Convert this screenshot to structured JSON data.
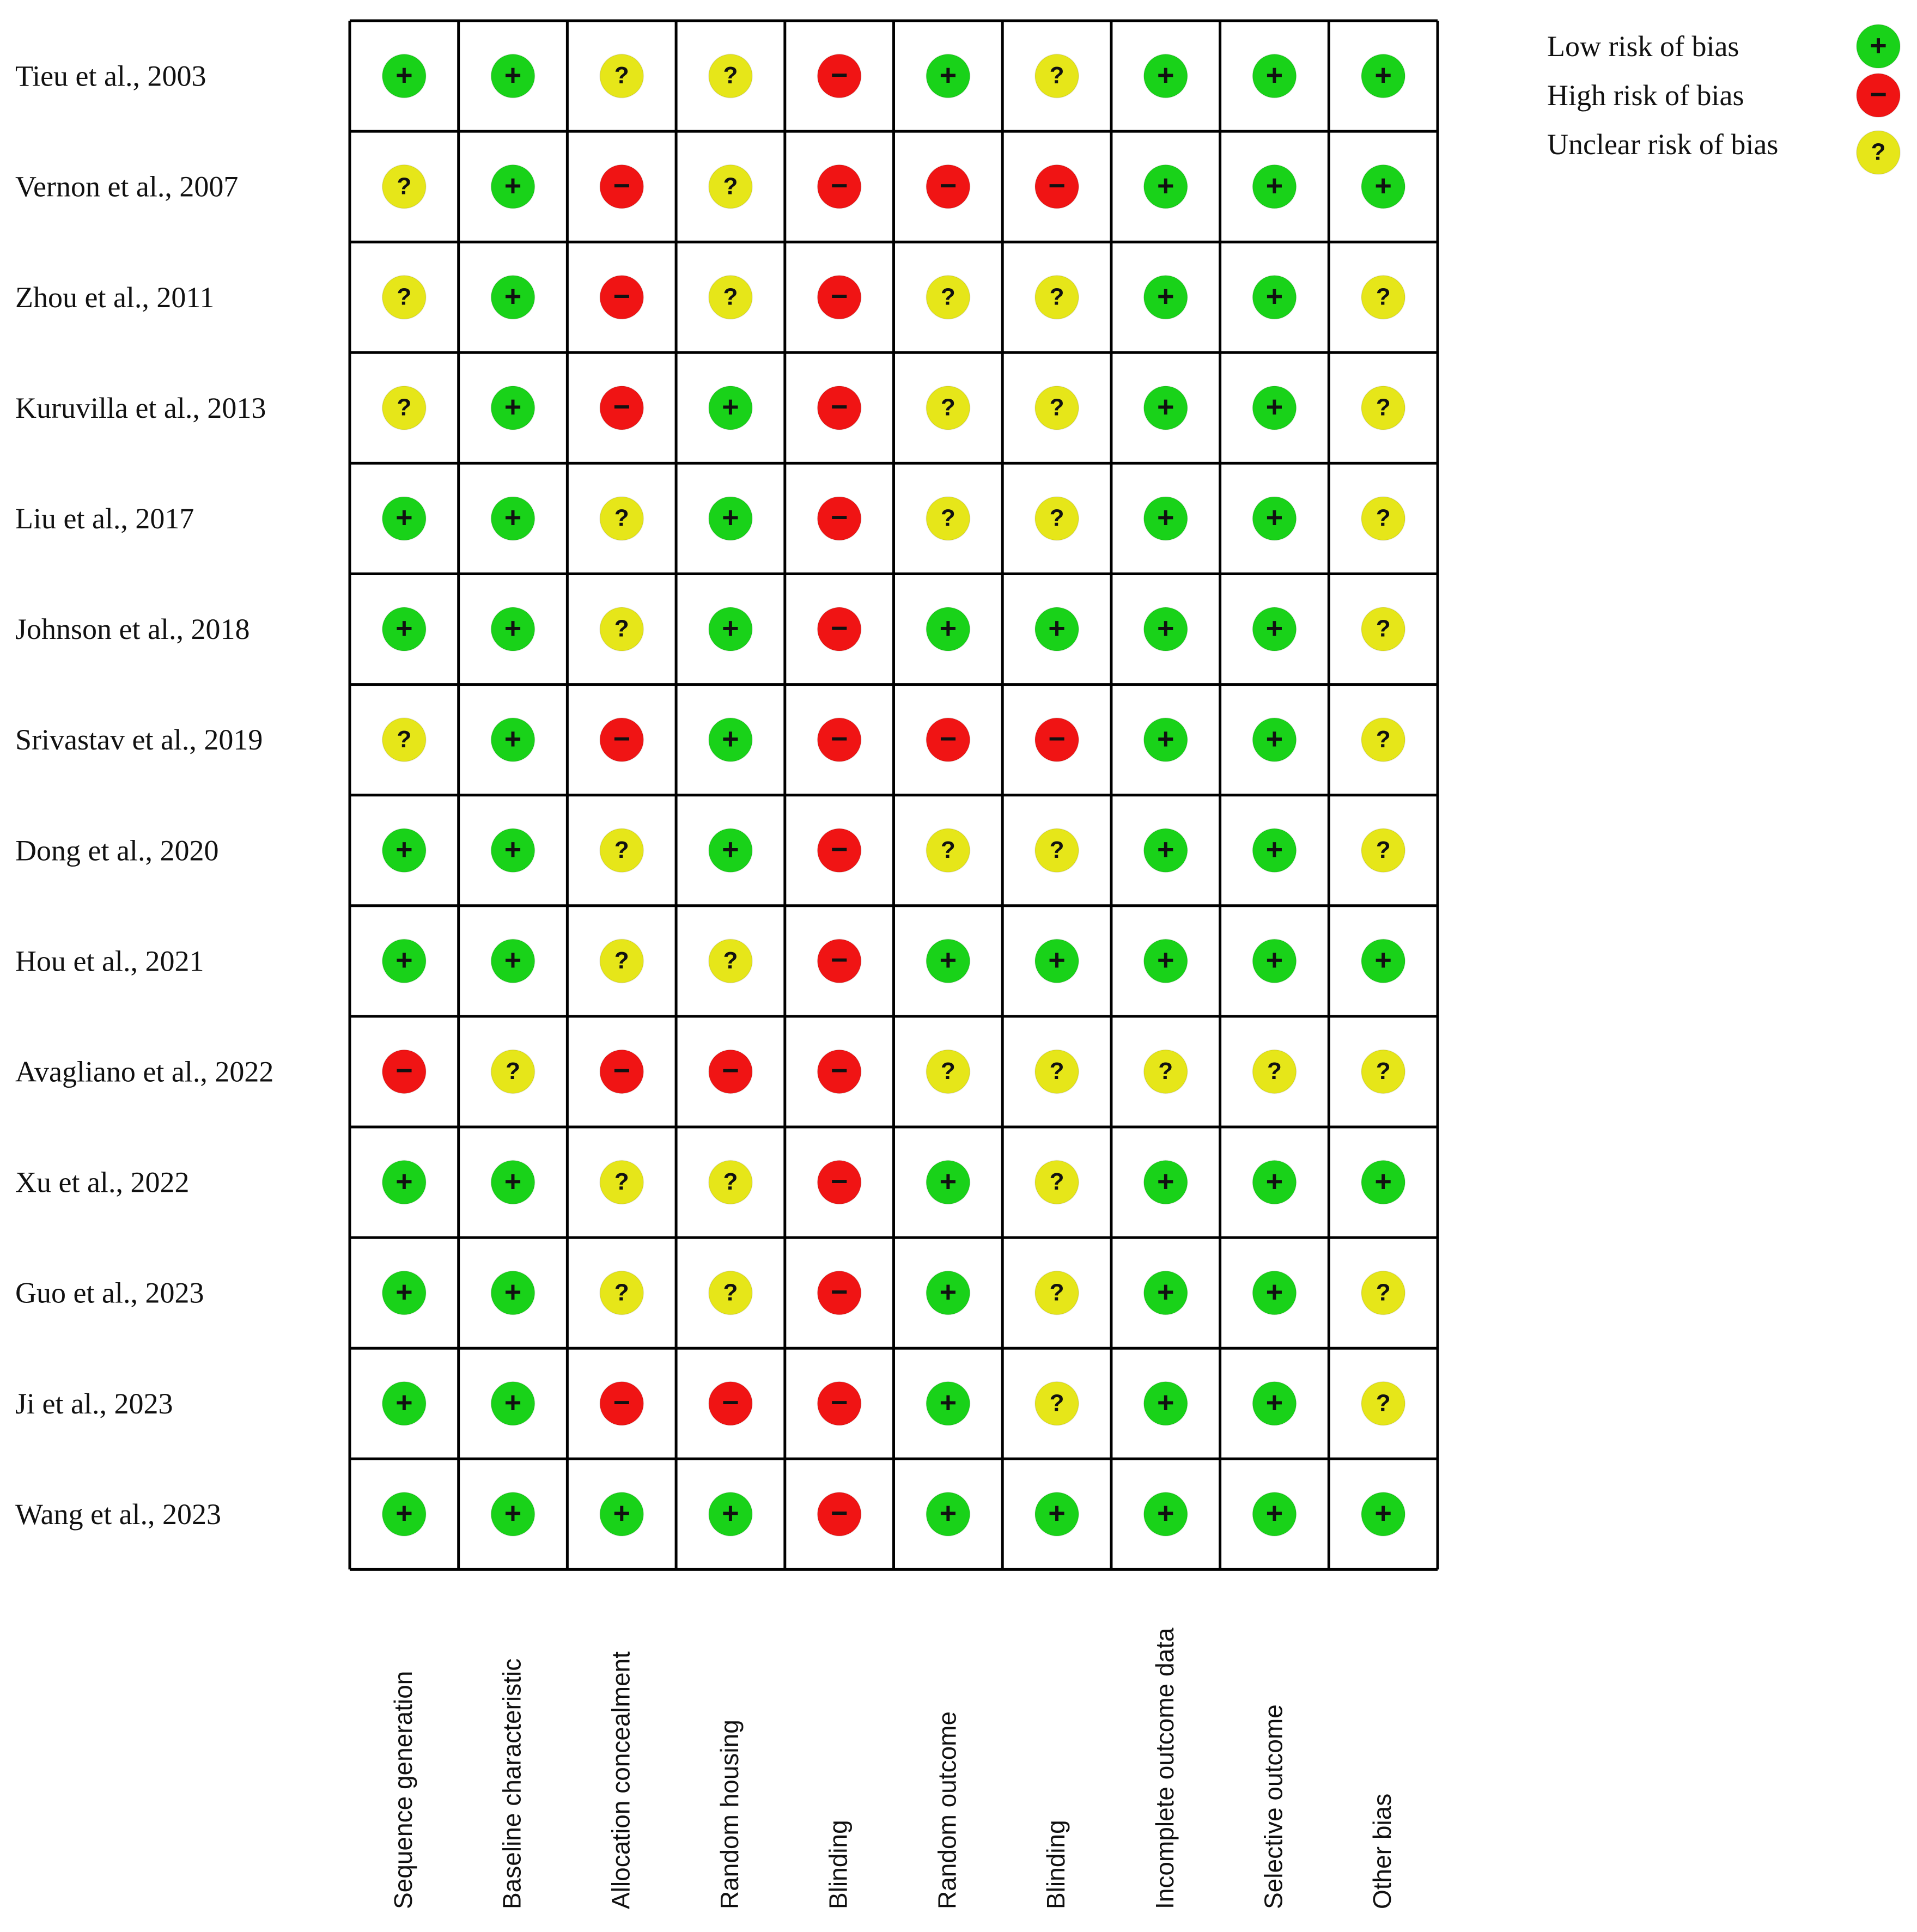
{
  "chart_data": {
    "type": "table",
    "symbols": {
      "low": "+",
      "high": "−",
      "unclear": "?"
    },
    "colors": {
      "low": "#19d219",
      "high": "#f01414",
      "unclear": "#e6e619",
      "grid": "#000000",
      "text": "#111111"
    },
    "legend": [
      {
        "key": "low",
        "label": "Low risk of bias"
      },
      {
        "key": "high",
        "label": "High risk of bias"
      },
      {
        "key": "unclear",
        "label": "Unclear risk of bias"
      }
    ],
    "columns": [
      "Sequence generation",
      "Baseline characteristic",
      "Allocation concealment",
      "Random housing",
      "Blinding",
      "Random outcome",
      "Blinding",
      "Incomplete outcome data",
      "Selective outcome",
      "Other bias"
    ],
    "rows": [
      {
        "study": "Tieu et al., 2003",
        "ratings": [
          "low",
          "low",
          "unclear",
          "unclear",
          "high",
          "low",
          "unclear",
          "low",
          "low",
          "low"
        ]
      },
      {
        "study": "Vernon et al., 2007",
        "ratings": [
          "unclear",
          "low",
          "high",
          "unclear",
          "high",
          "high",
          "high",
          "low",
          "low",
          "low"
        ]
      },
      {
        "study": "Zhou et al., 2011",
        "ratings": [
          "unclear",
          "low",
          "high",
          "unclear",
          "high",
          "unclear",
          "unclear",
          "low",
          "low",
          "unclear"
        ]
      },
      {
        "study": "Kuruvilla et al., 2013",
        "ratings": [
          "unclear",
          "low",
          "high",
          "low",
          "high",
          "unclear",
          "unclear",
          "low",
          "low",
          "unclear"
        ]
      },
      {
        "study": "Liu et al., 2017",
        "ratings": [
          "low",
          "low",
          "unclear",
          "low",
          "high",
          "unclear",
          "unclear",
          "low",
          "low",
          "unclear"
        ]
      },
      {
        "study": "Johnson et al., 2018",
        "ratings": [
          "low",
          "low",
          "unclear",
          "low",
          "high",
          "low",
          "low",
          "low",
          "low",
          "unclear"
        ]
      },
      {
        "study": "Srivastav et al., 2019",
        "ratings": [
          "unclear",
          "low",
          "high",
          "low",
          "high",
          "high",
          "high",
          "low",
          "low",
          "unclear"
        ]
      },
      {
        "study": "Dong et al., 2020",
        "ratings": [
          "low",
          "low",
          "unclear",
          "low",
          "high",
          "unclear",
          "unclear",
          "low",
          "low",
          "unclear"
        ]
      },
      {
        "study": "Hou et al., 2021",
        "ratings": [
          "low",
          "low",
          "unclear",
          "unclear",
          "high",
          "low",
          "low",
          "low",
          "low",
          "low"
        ]
      },
      {
        "study": "Avagliano et al., 2022",
        "ratings": [
          "high",
          "unclear",
          "high",
          "high",
          "high",
          "unclear",
          "unclear",
          "unclear",
          "unclear",
          "unclear"
        ]
      },
      {
        "study": "Xu et al., 2022",
        "ratings": [
          "low",
          "low",
          "unclear",
          "unclear",
          "high",
          "low",
          "unclear",
          "low",
          "low",
          "low"
        ]
      },
      {
        "study": "Guo et al., 2023",
        "ratings": [
          "low",
          "low",
          "unclear",
          "unclear",
          "high",
          "low",
          "unclear",
          "low",
          "low",
          "unclear"
        ]
      },
      {
        "study": "Ji et al., 2023",
        "ratings": [
          "low",
          "low",
          "high",
          "high",
          "high",
          "low",
          "unclear",
          "low",
          "low",
          "unclear"
        ]
      },
      {
        "study": "Wang et al., 2023",
        "ratings": [
          "low",
          "low",
          "low",
          "low",
          "high",
          "low",
          "low",
          "low",
          "low",
          "low"
        ]
      }
    ]
  }
}
